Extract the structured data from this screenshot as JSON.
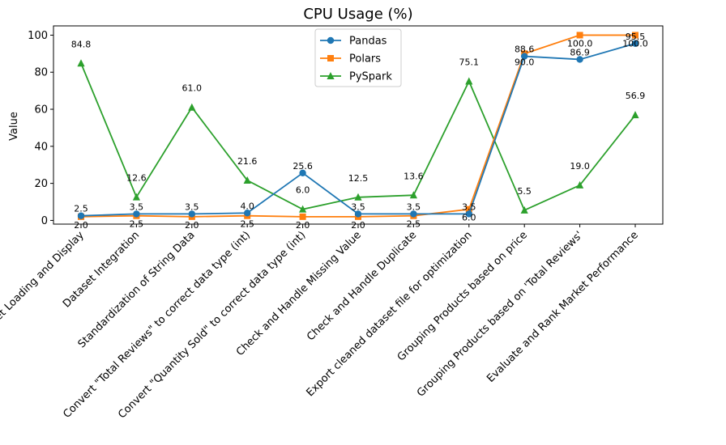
{
  "chart_data": {
    "type": "line",
    "title": "CPU Usage (%)",
    "xlabel": "",
    "ylabel": "Value",
    "ylim": [
      -2,
      105
    ],
    "yticks": [
      0,
      20,
      40,
      60,
      80,
      100
    ],
    "grid": false,
    "legend_position": "top-center",
    "categories": [
      "Dataset Loading and Display",
      "Dataset Integration",
      "Standardization of String Data",
      "Convert \"Total Reviews\" to correct data type (int)",
      "Convert \"Quantity Sold\" to correct data type (int)",
      "Check and Handle Missing Value",
      "Check and Handle Duplicate",
      "Export cleaned dataset file for optimization",
      "Grouping Products based on price",
      "Grouping Products based on 'Total Reviews'",
      "Evaluate and Rank Market Performance"
    ],
    "series": [
      {
        "name": "Pandas",
        "color": "#1f77b4",
        "marker": "circle",
        "values": [
          2.5,
          3.5,
          3.5,
          4.0,
          25.6,
          3.5,
          3.5,
          3.5,
          88.6,
          86.9,
          95.5
        ],
        "labels": [
          "2.5",
          "3.5",
          "3.5",
          "4.0",
          "25.6",
          "3.5",
          "3.5",
          "3.5",
          "88.6",
          "86.9",
          "95.5"
        ]
      },
      {
        "name": "Polars",
        "color": "#ff7f0e",
        "marker": "square",
        "values": [
          2.0,
          2.5,
          2.0,
          2.5,
          2.0,
          2.0,
          2.5,
          6.0,
          90.0,
          100.0,
          100.0
        ],
        "labels": [
          "2.0",
          "2.5",
          "2.0",
          "2.5",
          "2.0",
          "2.0",
          "2.5",
          "6.0",
          "90.0",
          "100.0",
          "100.0"
        ]
      },
      {
        "name": "PySpark",
        "color": "#2ca02c",
        "marker": "triangle",
        "values": [
          84.8,
          12.6,
          61.0,
          21.6,
          6.0,
          12.5,
          13.6,
          75.1,
          5.5,
          19.0,
          56.9
        ],
        "labels": [
          "84.8",
          "12.6",
          "61.0",
          "21.6",
          "6.0",
          "12.5",
          "13.6",
          "75.1",
          "5.5",
          "19.0",
          "56.9"
        ]
      }
    ]
  }
}
